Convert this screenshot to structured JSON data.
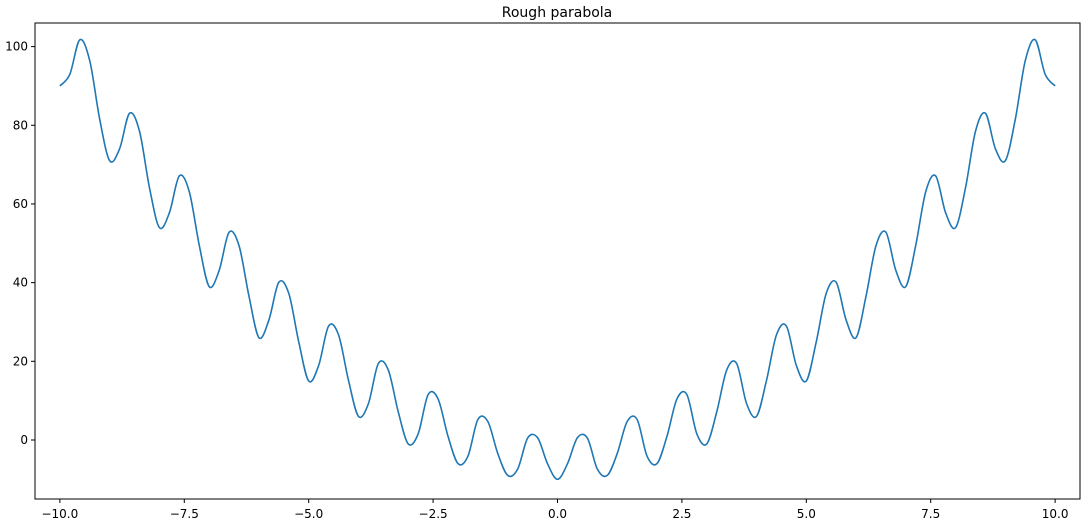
{
  "chart_data": {
    "type": "line",
    "title": "Rough parabola",
    "xlabel": "",
    "ylabel": "",
    "xlim": [
      -10.5,
      10.5
    ],
    "ylim": [
      -15,
      106
    ],
    "x_ticks": [
      -10.0,
      -7.5,
      -5.0,
      -2.5,
      0.0,
      2.5,
      5.0,
      7.5,
      10.0
    ],
    "x_tick_labels": [
      "−10.0",
      "−7.5",
      "−5.0",
      "−2.5",
      "0.0",
      "2.5",
      "5.0",
      "7.5",
      "10.0"
    ],
    "y_ticks": [
      0,
      20,
      40,
      60,
      80,
      100
    ],
    "y_tick_labels": [
      "0",
      "20",
      "40",
      "60",
      "80",
      "100"
    ],
    "grid": false,
    "legend": "none",
    "series": [
      {
        "color": "#1f77b4",
        "x": [
          -10.0,
          -9.8,
          -9.6,
          -9.4,
          -9.2,
          -9.0,
          -8.8,
          -8.6,
          -8.4,
          -8.2,
          -8.0,
          -7.8,
          -7.6,
          -7.4,
          -7.2,
          -7.0,
          -6.8,
          -6.6,
          -6.4,
          -6.2,
          -6.0,
          -5.8,
          -5.6,
          -5.4,
          -5.2,
          -5.0,
          -4.8,
          -4.6,
          -4.4,
          -4.2,
          -4.0,
          -3.8,
          -3.6,
          -3.4,
          -3.2,
          -3.0,
          -2.8,
          -2.6,
          -2.4,
          -2.2,
          -2.0,
          -1.8,
          -1.6,
          -1.4,
          -1.2,
          -1.0,
          -0.8,
          -0.6,
          -0.4,
          -0.2,
          0.0,
          0.2,
          0.4,
          0.6,
          0.8,
          1.0,
          1.2,
          1.4,
          1.6,
          1.8,
          2.0,
          2.2,
          2.4,
          2.6,
          2.8,
          3.0,
          3.2,
          3.4,
          3.6,
          3.8,
          4.0,
          4.2,
          4.4,
          4.6,
          4.8,
          5.0,
          5.2,
          5.4,
          5.6,
          5.8,
          6.0,
          6.2,
          6.4,
          6.6,
          6.8,
          7.0,
          7.2,
          7.4,
          7.6,
          7.8,
          8.0,
          8.2,
          8.4,
          8.6,
          8.8,
          9.0,
          9.2,
          9.4,
          9.6,
          9.8,
          10.0
        ],
        "y": [
          90.0,
          92.95,
          101.73,
          96.42,
          81.55,
          71.0,
          74.03,
          83.05,
          78.48,
          64.15,
          54.0,
          57.75,
          67.13,
          63.14,
          49.55,
          39.0,
          43.07,
          52.81,
          49.4,
          36.55,
          26.0,
          30.49,
          40.09,
          37.26,
          24.95,
          15.0,
          18.93,
          28.97,
          26.72,
          15.15,
          6.0,
          9.25,
          19.45,
          17.78,
          7.15,
          -1.0,
          1.57,
          11.53,
          10.44,
          0.95,
          -6.0,
          -4.11,
          5.21,
          4.7,
          -3.45,
          -9.0,
          -7.39,
          0.49,
          0.56,
          -6.05,
          -10.0,
          -6.05,
          0.56,
          0.49,
          -7.39,
          -9.0,
          -3.45,
          4.7,
          5.21,
          -4.11,
          -6.0,
          0.95,
          10.44,
          11.53,
          1.57,
          -1.0,
          7.15,
          17.78,
          19.45,
          9.25,
          6.0,
          15.15,
          26.72,
          28.97,
          18.93,
          15.0,
          24.95,
          37.26,
          40.09,
          30.49,
          26.0,
          36.55,
          49.4,
          52.81,
          43.07,
          39.0,
          49.55,
          63.14,
          67.13,
          57.75,
          54.0,
          64.15,
          78.48,
          83.05,
          74.03,
          71.0,
          81.55,
          96.42,
          101.73,
          92.95,
          90.0
        ]
      }
    ]
  }
}
